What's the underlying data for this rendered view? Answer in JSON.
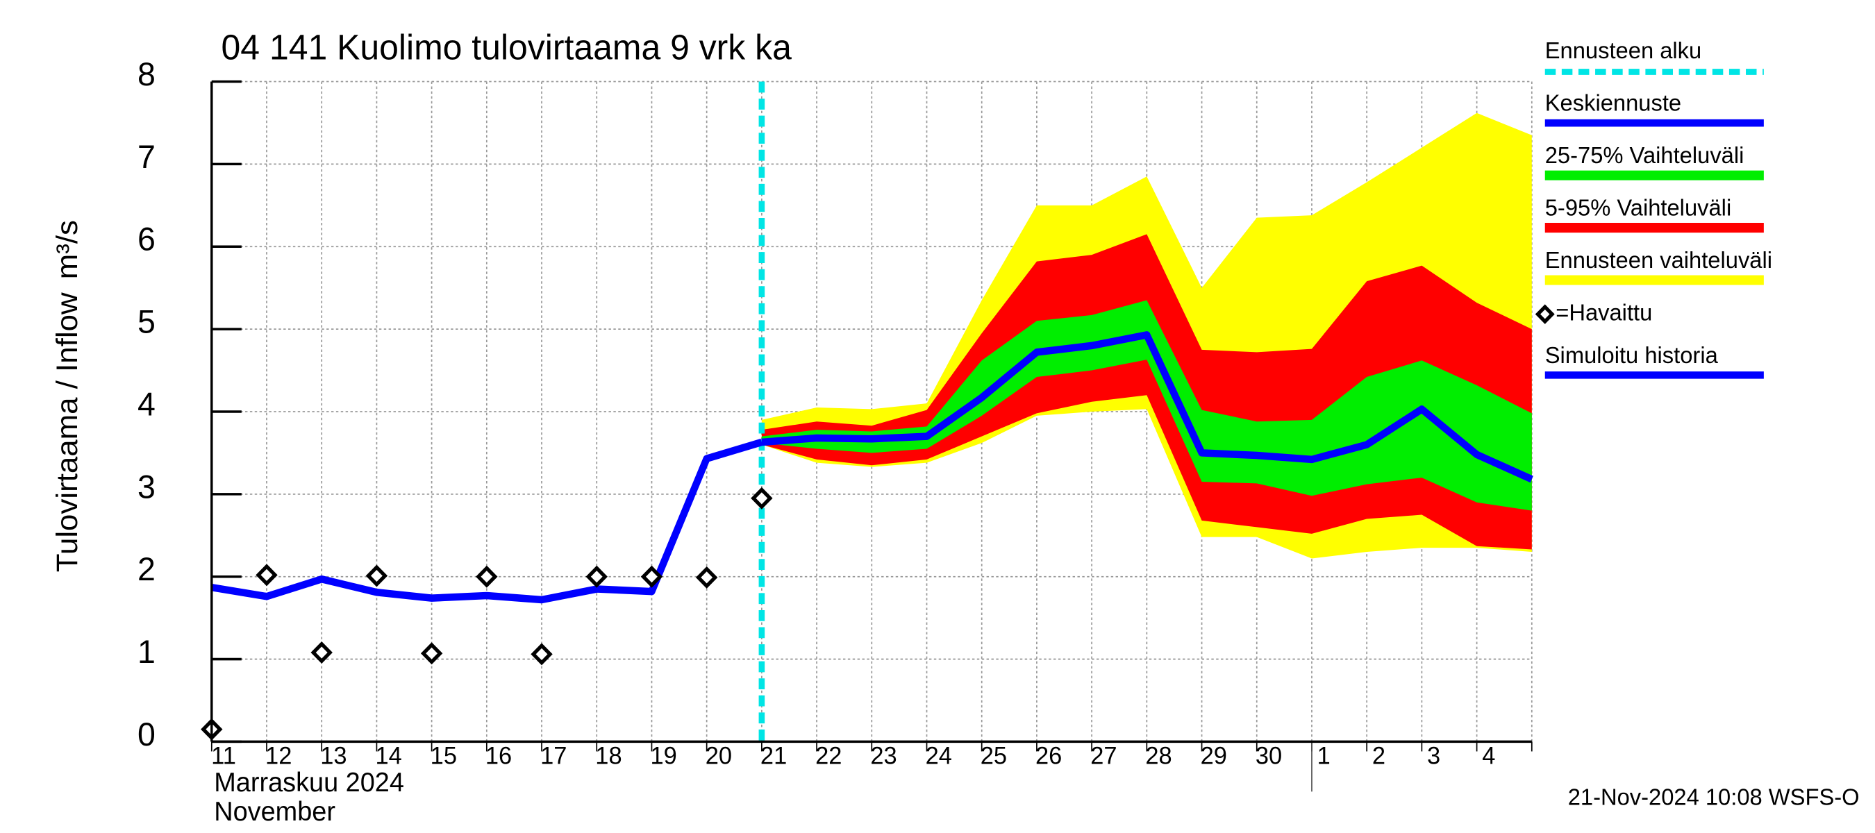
{
  "chart_data": {
    "type": "fan",
    "title": "04 141 Kuolimo tulovirtaama 9 vrk ka",
    "ylabel": "Tulovirtaama / Inflow",
    "yunit": "m³/s",
    "xlabel_lines": [
      "Marraskuu 2024",
      "November"
    ],
    "footer": "21-Nov-2024 10:08 WSFS-O",
    "categories": [
      "11",
      "12",
      "13",
      "14",
      "15",
      "16",
      "17",
      "18",
      "19",
      "20",
      "21",
      "22",
      "23",
      "24",
      "25",
      "26",
      "27",
      "28",
      "29",
      "30",
      "1",
      "2",
      "3",
      "4",
      null
    ],
    "month_break": "1",
    "forecast_start": {
      "name": "Ennusteen alku",
      "x": "21",
      "color": "#00e5e5"
    },
    "ylim": [
      0,
      8
    ],
    "yticks": [
      0,
      1,
      2,
      3,
      4,
      5,
      6,
      7,
      8
    ],
    "grid": true,
    "series": [
      {
        "name": "Keskiennuste",
        "kind": "line",
        "color": "#0000ff",
        "values": [
          null,
          null,
          null,
          null,
          null,
          null,
          null,
          null,
          null,
          null,
          3.63,
          3.68,
          3.67,
          3.7,
          4.17,
          4.72,
          4.8,
          4.93,
          3.5,
          3.47,
          3.42,
          3.6,
          4.03,
          3.48,
          3.18
        ]
      },
      {
        "name": "25-75% Vaihteluväli",
        "kind": "band",
        "color": "#00ee00",
        "lower": [
          null,
          null,
          null,
          null,
          null,
          null,
          null,
          null,
          null,
          null,
          3.62,
          3.55,
          3.5,
          3.55,
          3.95,
          4.42,
          4.5,
          4.63,
          3.15,
          3.13,
          2.98,
          3.12,
          3.2,
          2.9,
          2.8
        ],
        "upper": [
          null,
          null,
          null,
          null,
          null,
          null,
          null,
          null,
          null,
          null,
          3.7,
          3.78,
          3.76,
          3.82,
          4.62,
          5.1,
          5.17,
          5.35,
          4.02,
          3.88,
          3.9,
          4.42,
          4.62,
          4.32,
          3.98
        ]
      },
      {
        "name": "5-95% Vaihteluväli",
        "kind": "band",
        "color": "#ff0000",
        "lower": [
          null,
          null,
          null,
          null,
          null,
          null,
          null,
          null,
          null,
          null,
          3.6,
          3.42,
          3.35,
          3.42,
          3.7,
          3.98,
          4.12,
          4.2,
          2.68,
          2.6,
          2.52,
          2.7,
          2.75,
          2.37,
          2.33
        ],
        "upper": [
          null,
          null,
          null,
          null,
          null,
          null,
          null,
          null,
          null,
          null,
          3.78,
          3.88,
          3.83,
          4.02,
          4.95,
          5.82,
          5.9,
          6.15,
          4.75,
          4.72,
          4.76,
          5.58,
          5.77,
          5.32,
          5.0
        ]
      },
      {
        "name": "Ennusteen vaihteluväli",
        "kind": "band",
        "color": "#ffff00",
        "lower": [
          null,
          null,
          null,
          null,
          null,
          null,
          null,
          null,
          null,
          null,
          3.6,
          3.38,
          3.33,
          3.38,
          3.62,
          3.95,
          4.0,
          4.03,
          2.48,
          2.48,
          2.22,
          2.3,
          2.35,
          2.35,
          2.3
        ],
        "upper": [
          null,
          null,
          null,
          null,
          null,
          null,
          null,
          null,
          null,
          null,
          3.9,
          4.05,
          4.03,
          4.1,
          5.35,
          6.5,
          6.5,
          6.85,
          5.5,
          6.35,
          6.38,
          6.78,
          7.2,
          7.62,
          7.35
        ]
      },
      {
        "name": "=Havaittu",
        "kind": "marker",
        "color": "#000000",
        "values": [
          0.15,
          2.02,
          1.08,
          2.01,
          1.07,
          2.0,
          1.06,
          2.0,
          2.0,
          1.99,
          2.95,
          null,
          null,
          null,
          null,
          null,
          null,
          null,
          null,
          null,
          null,
          null,
          null,
          null,
          null
        ]
      },
      {
        "name": "Simuloitu historia",
        "kind": "line",
        "color": "#0000ff",
        "values": [
          1.87,
          1.76,
          1.97,
          1.81,
          1.74,
          1.77,
          1.72,
          1.85,
          1.82,
          3.43,
          3.63,
          null,
          null,
          null,
          null,
          null,
          null,
          null,
          null,
          null,
          null,
          null,
          null,
          null,
          null
        ]
      }
    ]
  }
}
